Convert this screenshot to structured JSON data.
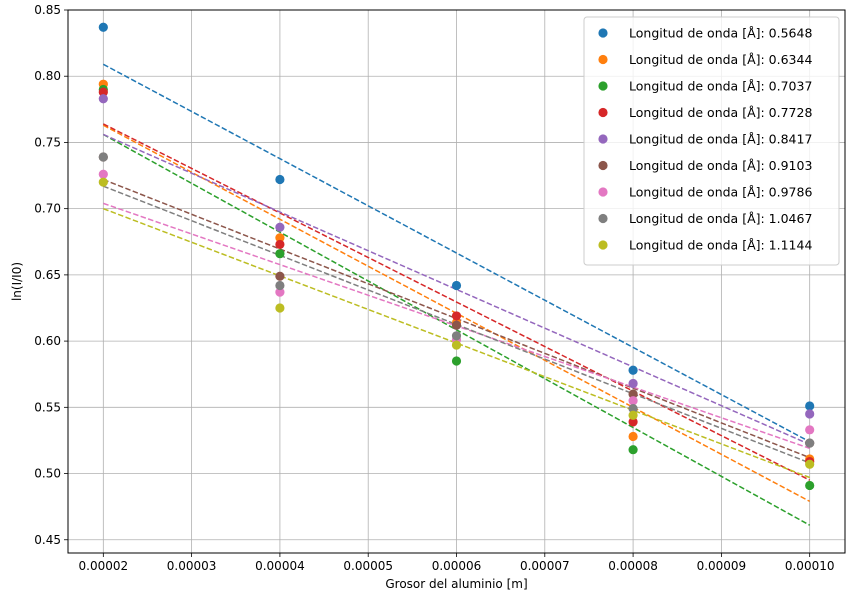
{
  "chart_data": {
    "type": "scatter",
    "xlabel": "Grosor del aluminio [m]",
    "ylabel": "ln(I/I0)",
    "xlim": [
      1.6e-05,
      0.000104
    ],
    "ylim": [
      0.44,
      0.85
    ],
    "xticks": [
      "0.00002",
      "0.00003",
      "0.00004",
      "0.00005",
      "0.00006",
      "0.00007",
      "0.00008",
      "0.00009",
      "0.00010"
    ],
    "yticks": [
      "0.45",
      "0.50",
      "0.55",
      "0.60",
      "0.65",
      "0.70",
      "0.75",
      "0.80",
      "0.85"
    ],
    "xtick_values": [
      2e-05,
      3e-05,
      4e-05,
      5e-05,
      6e-05,
      7e-05,
      8e-05,
      9e-05,
      0.0001
    ],
    "ytick_values": [
      0.45,
      0.5,
      0.55,
      0.6,
      0.65,
      0.7,
      0.75,
      0.8,
      0.85
    ],
    "grid": true,
    "legend_position": "top-right",
    "x": [
      2e-05,
      4e-05,
      6e-05,
      8e-05,
      0.0001
    ],
    "series": [
      {
        "name": "Longitud de onda [Å]: 0.5648",
        "color": "#1f77b4",
        "values": [
          0.837,
          0.722,
          0.642,
          0.578,
          0.551
        ],
        "fit": [
          0.809,
          0.524
        ]
      },
      {
        "name": "Longitud de onda [Å]: 0.6344",
        "color": "#ff7f0e",
        "values": [
          0.794,
          0.678,
          0.614,
          0.528,
          0.511
        ],
        "fit": [
          0.763,
          0.479
        ]
      },
      {
        "name": "Longitud de onda [Å]: 0.7037",
        "color": "#2ca02c",
        "values": [
          0.79,
          0.666,
          0.585,
          0.518,
          0.491
        ],
        "fit": [
          0.756,
          0.461
        ]
      },
      {
        "name": "Longitud de onda [Å]: 0.7728",
        "color": "#d62728",
        "values": [
          0.788,
          0.673,
          0.619,
          0.539,
          0.509
        ],
        "fit": [
          0.764,
          0.495
        ]
      },
      {
        "name": "Longitud de onda [Å]: 0.8417",
        "color": "#9467bd",
        "values": [
          0.783,
          0.686,
          0.612,
          0.568,
          0.545
        ],
        "fit": [
          0.756,
          0.522
        ]
      },
      {
        "name": "Longitud de onda [Å]: 0.9103",
        "color": "#8c564b",
        "values": [
          0.739,
          0.649,
          0.612,
          0.56,
          0.523
        ],
        "fit": [
          0.722,
          0.512
        ]
      },
      {
        "name": "Longitud de onda [Å]: 0.9786",
        "color": "#e377c2",
        "values": [
          0.726,
          0.637,
          0.601,
          0.555,
          0.533
        ],
        "fit": [
          0.704,
          0.519
        ]
      },
      {
        "name": "Longitud de onda [Å]: 1.0467",
        "color": "#7f7f7f",
        "values": [
          0.739,
          0.642,
          0.604,
          0.549,
          0.523
        ],
        "fit": [
          0.717,
          0.508
        ]
      },
      {
        "name": "Longitud de onda [Å]: 1.1144",
        "color": "#bcbd22",
        "values": [
          0.72,
          0.625,
          0.597,
          0.544,
          0.507
        ],
        "fit": [
          0.7,
          0.497
        ]
      }
    ]
  }
}
